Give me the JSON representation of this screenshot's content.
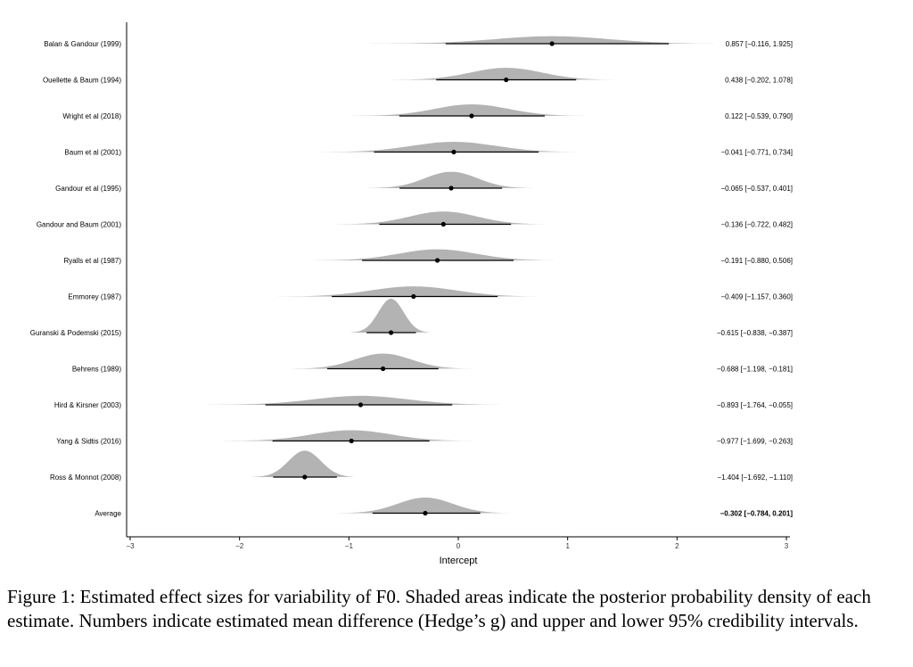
{
  "chart_data": {
    "type": "forest-density",
    "xlabel": "Intercept",
    "ylabel": "",
    "xlim": [
      -3,
      3
    ],
    "xticks": [
      -3,
      -2,
      -1,
      0,
      1,
      2,
      3
    ],
    "grid": false,
    "density_color": "#b3b3b3",
    "studies": [
      {
        "label": "Balan & Gandour (1999)",
        "mean": 0.857,
        "lower": -0.116,
        "upper": 1.925,
        "text": "0.857 [−0.116,  1.925]"
      },
      {
        "label": "Ouellette & Baum (1994)",
        "mean": 0.438,
        "lower": -0.202,
        "upper": 1.078,
        "text": "0.438 [−0.202,  1.078]"
      },
      {
        "label": "Wright et al (2018)",
        "mean": 0.122,
        "lower": -0.539,
        "upper": 0.79,
        "text": "0.122 [−0.539,  0.790]"
      },
      {
        "label": "Baum et al (2001)",
        "mean": -0.041,
        "lower": -0.771,
        "upper": 0.734,
        "text": "−0.041 [−0.771,  0.734]"
      },
      {
        "label": "Gandour et al (1995)",
        "mean": -0.065,
        "lower": -0.537,
        "upper": 0.401,
        "text": "−0.065 [−0.537,  0.401]"
      },
      {
        "label": "Gandour and Baum (2001)",
        "mean": -0.136,
        "lower": -0.722,
        "upper": 0.482,
        "text": "−0.136 [−0.722,  0.482]"
      },
      {
        "label": "Ryalls et al (1987)",
        "mean": -0.191,
        "lower": -0.88,
        "upper": 0.506,
        "text": "−0.191 [−0.880,  0.506]"
      },
      {
        "label": "Emmorey (1987)",
        "mean": -0.409,
        "lower": -1.157,
        "upper": 0.36,
        "text": "−0.409 [−1.157,  0.360]"
      },
      {
        "label": "Guranski & Podemski (2015)",
        "mean": -0.615,
        "lower": -0.838,
        "upper": -0.387,
        "text": "−0.615 [−0.838, −0.387]"
      },
      {
        "label": "Behrens (1989)",
        "mean": -0.688,
        "lower": -1.198,
        "upper": -0.181,
        "text": "−0.688 [−1.198, −0.181]"
      },
      {
        "label": "Hird & Kirsner (2003)",
        "mean": -0.893,
        "lower": -1.764,
        "upper": -0.055,
        "text": "−0.893 [−1.764, −0.055]"
      },
      {
        "label": "Yang & Sidtis (2016)",
        "mean": -0.977,
        "lower": -1.699,
        "upper": -0.263,
        "text": "−0.977 [−1.699, −0.263]"
      },
      {
        "label": "Ross & Monnot (2008)",
        "mean": -1.404,
        "lower": -1.692,
        "upper": -1.11,
        "text": "−1.404 [−1.692, −1.110]"
      },
      {
        "label": "Average",
        "mean": -0.302,
        "lower": -0.784,
        "upper": 0.201,
        "text": "−0.302 [−0.784,  0.201]",
        "bold": true
      }
    ]
  },
  "caption": "Figure 1: Estimated effect sizes for variability of F0. Shaded areas indicate the posterior probability density of each estimate. Numbers indicate estimated mean difference (Hedge’s g) and upper and lower 95% credibility intervals."
}
